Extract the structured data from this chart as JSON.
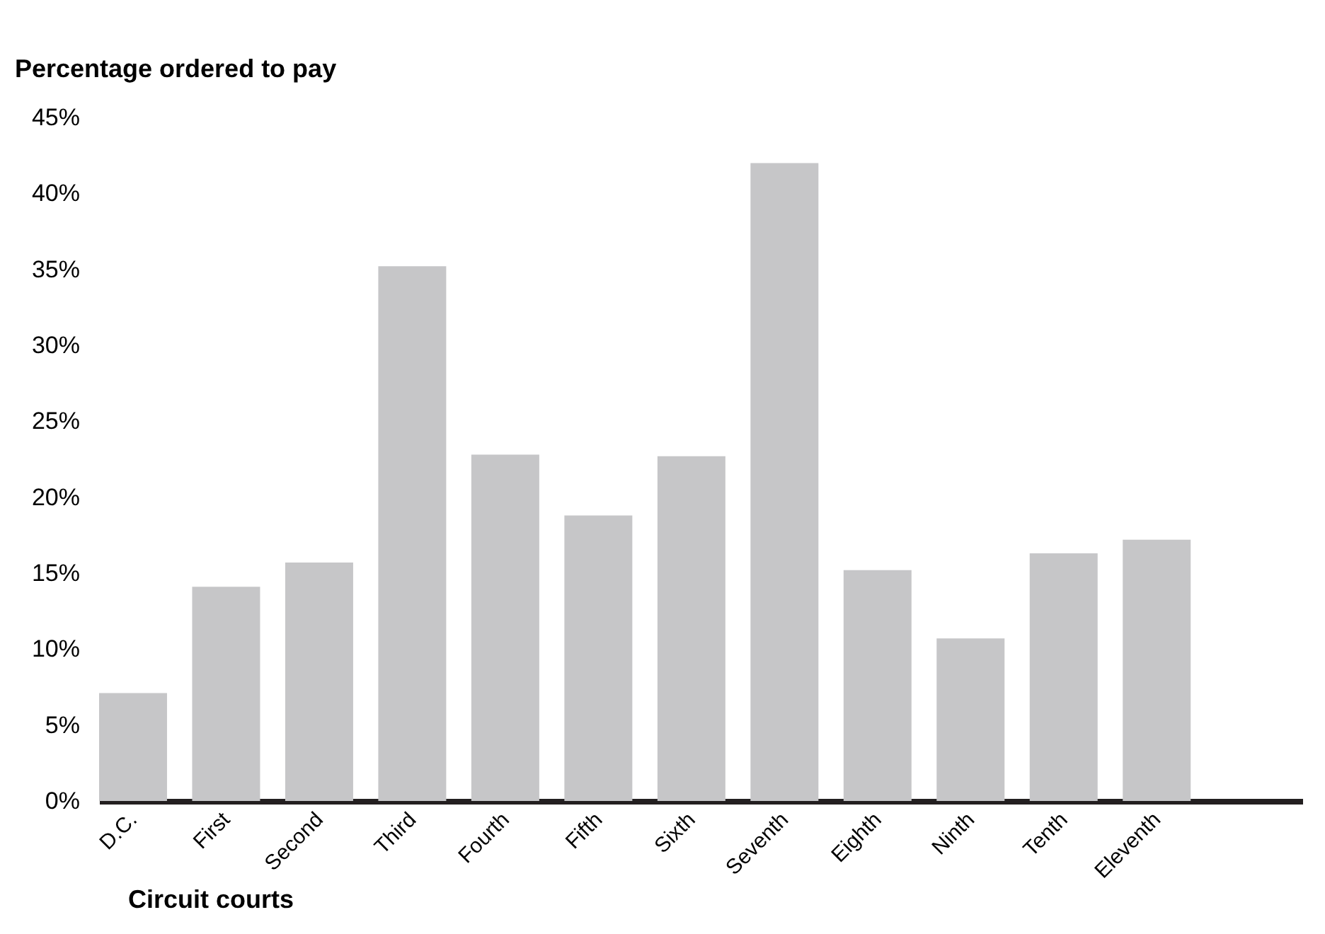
{
  "chart_data": {
    "type": "bar",
    "xlabel": "Circuit courts",
    "ylabel": "Percentage ordered to pay",
    "categories": [
      "D.C.",
      "First",
      "Second",
      "Third",
      "Fourth",
      "Fifth",
      "Sixth",
      "Seventh",
      "Eighth",
      "Ninth",
      "Tenth",
      "Eleventh"
    ],
    "values": [
      7.1,
      14.1,
      15.7,
      35.2,
      22.8,
      18.8,
      22.7,
      42.0,
      15.2,
      10.7,
      16.3,
      17.2
    ],
    "color": "#c6c6c8",
    "ylim": [
      0,
      45
    ],
    "yticks": [
      {
        "value": 0,
        "label": "0%"
      },
      {
        "value": 5,
        "label": "5%"
      },
      {
        "value": 10,
        "label": "10%"
      },
      {
        "value": 15,
        "label": "15%"
      },
      {
        "value": 20,
        "label": "20%"
      },
      {
        "value": 25,
        "label": "25%"
      },
      {
        "value": 30,
        "label": "30%"
      },
      {
        "value": 35,
        "label": "35%"
      },
      {
        "value": 40,
        "label": "40%"
      },
      {
        "value": 45,
        "label": "45%"
      }
    ],
    "grid": false
  }
}
